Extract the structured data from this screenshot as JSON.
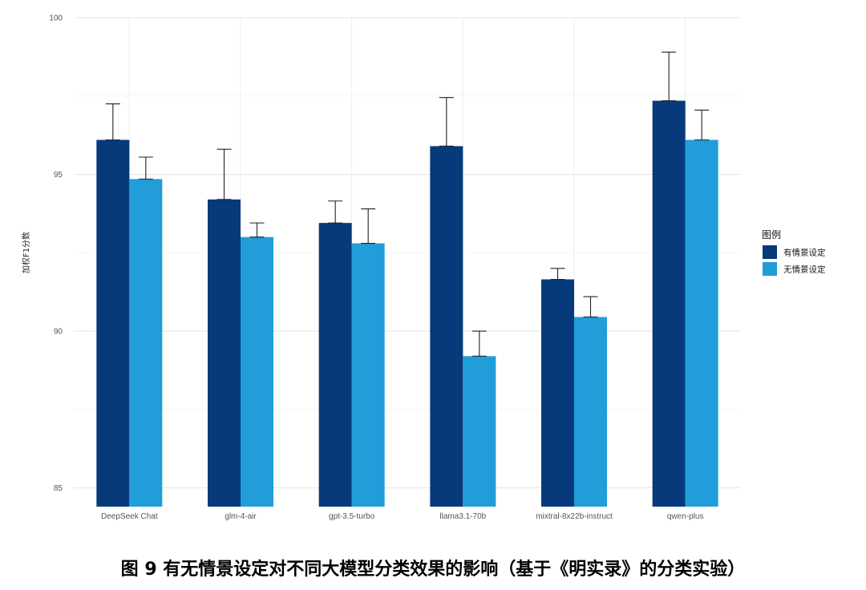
{
  "caption": "图 9 有无情景设定对不同大模型分类效果的影响（基于《明实录》的分类实验）",
  "chart_data": {
    "type": "bar",
    "title": "",
    "xlabel": "",
    "ylabel": "加权F1分数",
    "ylim": [
      84.4,
      100
    ],
    "yticks": [
      85,
      90,
      95,
      100
    ],
    "grid": true,
    "legend": {
      "title": "图例",
      "position": "right"
    },
    "categories": [
      "DeepSeek Chat",
      "glm-4-air",
      "gpt-3.5-turbo",
      "llama3.1-70b",
      "mixtral-8x22b-instruct",
      "qwen-plus"
    ],
    "series": [
      {
        "name": "有情景设定",
        "color": "#063a7a",
        "values": [
          96.1,
          94.2,
          93.45,
          95.9,
          91.65,
          97.35
        ],
        "error_upper": [
          97.25,
          95.8,
          94.15,
          97.45,
          92.0,
          98.9
        ]
      },
      {
        "name": "无情景设定",
        "color": "#219dd9",
        "values": [
          94.85,
          93.0,
          92.8,
          89.2,
          90.45,
          96.1
        ],
        "error_upper": [
          95.55,
          93.45,
          93.9,
          90.0,
          91.1,
          97.05
        ]
      }
    ]
  }
}
